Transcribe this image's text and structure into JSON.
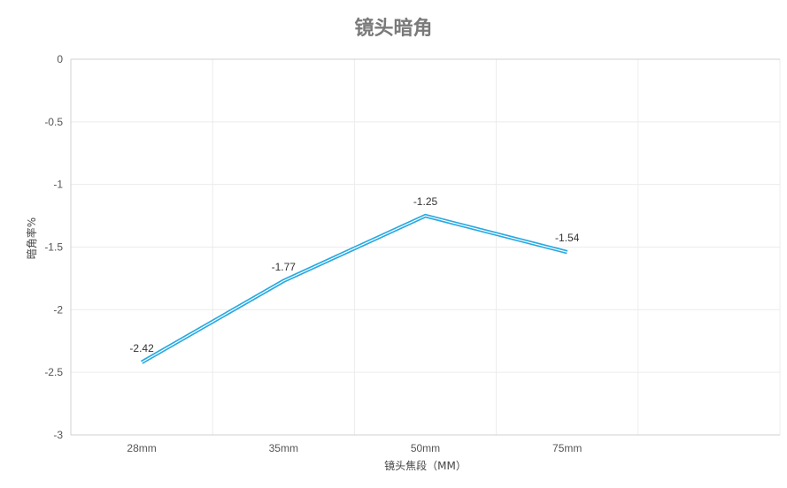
{
  "chart_data": {
    "type": "line",
    "title": "镜头暗角",
    "xlabel": "镜头焦段（MM）",
    "ylabel": "暗角率%",
    "categories": [
      "28mm",
      "35mm",
      "50mm",
      "75mm"
    ],
    "series": [
      {
        "values": [
          -2.42,
          -1.77,
          -1.25,
          -1.54
        ]
      }
    ],
    "data_labels": [
      "-2.42",
      "-1.77",
      "-1.25",
      "-1.54"
    ],
    "ylim": [
      -3,
      0
    ],
    "yticks": [
      0,
      -0.5,
      -1,
      -1.5,
      -2,
      -2.5,
      -3
    ],
    "ytick_labels": [
      "0",
      "-0.5",
      "-1",
      "-1.5",
      "-2",
      "-2.5",
      "-3"
    ],
    "grid": true,
    "line_color": "#29a9e0"
  }
}
